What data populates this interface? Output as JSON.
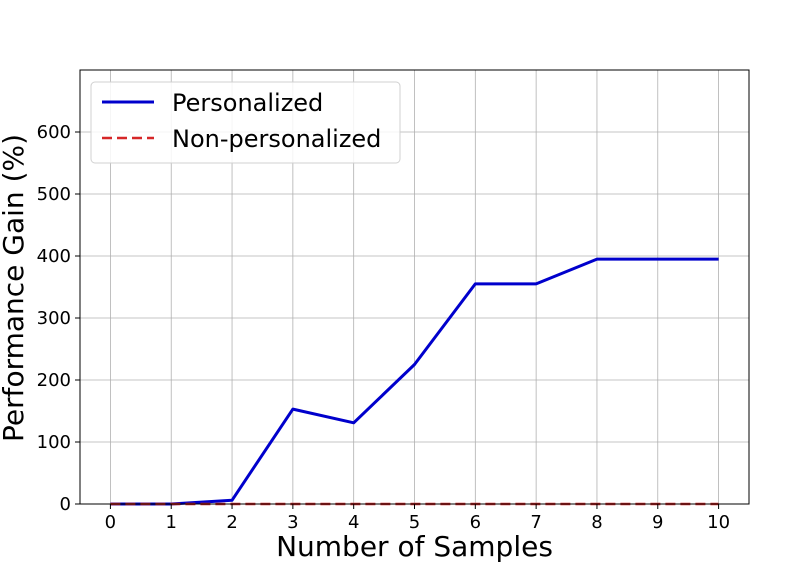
{
  "chart_data": {
    "type": "line",
    "xlabel": "Number of Samples",
    "ylabel": "Performance Gain (%)",
    "x": [
      0,
      1,
      2,
      3,
      4,
      5,
      6,
      7,
      8,
      9,
      10
    ],
    "xlim": [
      -0.5,
      10.5
    ],
    "ylim": [
      0,
      700
    ],
    "xticks": [
      0,
      1,
      2,
      3,
      4,
      5,
      6,
      7,
      8,
      9,
      10
    ],
    "yticks": [
      0,
      100,
      200,
      300,
      400,
      500,
      600
    ],
    "grid": true,
    "legend_position": "top-left",
    "series": [
      {
        "name": "Personalized",
        "values": [
          0,
          0,
          6,
          153,
          131,
          225,
          355,
          355,
          395,
          395,
          395
        ],
        "color": "#0000cc",
        "style": "solid"
      },
      {
        "name": "Non-personalized",
        "values": [
          0,
          0,
          0,
          0,
          0,
          0,
          0,
          0,
          0,
          0,
          0
        ],
        "color": "#d62728",
        "style": "dashed"
      }
    ]
  }
}
